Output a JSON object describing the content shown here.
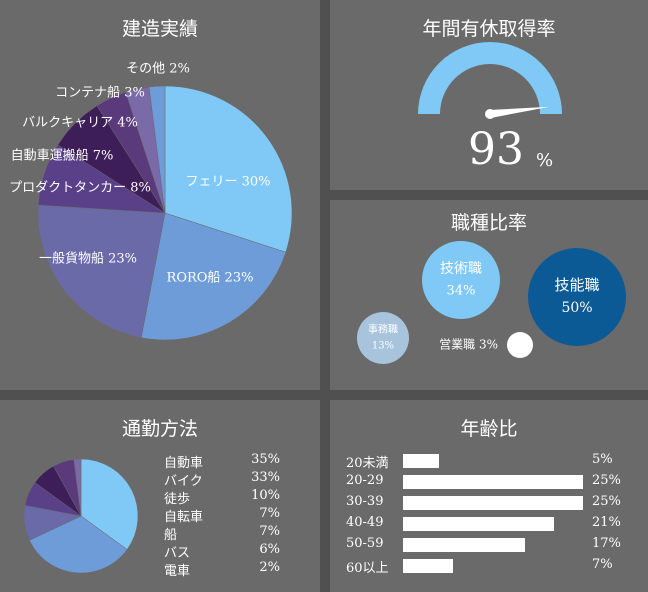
{
  "panels": {
    "construction": {
      "title": "建造実績"
    },
    "holidays": {
      "title": "年間有休取得率",
      "value": "93",
      "unit": "%"
    },
    "jobs": {
      "title": "職種比率"
    },
    "commute": {
      "title": "通勤方法"
    },
    "age": {
      "title": "年齢比"
    }
  },
  "colors": {
    "panel_bg": "#6a6a6a",
    "page_bg": "#505050",
    "light_blue": "#80c8f5",
    "mid_blue": "#6e9cd8",
    "dark_blue": "#0b5a96",
    "gray_blue": "#a8c4dc"
  },
  "chart_data": [
    {
      "type": "pie",
      "title": "建造実績",
      "slices": [
        {
          "label": "フェリー",
          "value": 30,
          "color": "#80c8f5"
        },
        {
          "label": "RORO船",
          "value": 23,
          "color": "#6e9cd8"
        },
        {
          "label": "一般貨物船",
          "value": 23,
          "color": "#6a6aa8"
        },
        {
          "label": "プロダクトタンカー",
          "value": 8,
          "color": "#5a4088"
        },
        {
          "label": "自動車運搬船",
          "value": 7,
          "color": "#3e1e58"
        },
        {
          "label": "バルクキャリア",
          "value": 4,
          "color": "#5a3a7a"
        },
        {
          "label": "コンテナ船",
          "value": 3,
          "color": "#7a6aa8"
        },
        {
          "label": "その他",
          "value": 2,
          "color": "#6e9cd8"
        }
      ]
    },
    {
      "type": "gauge",
      "title": "年間有休取得率",
      "value": 93,
      "max": 100,
      "unit": "%"
    },
    {
      "type": "bubble",
      "title": "職種比率",
      "items": [
        {
          "label": "技能職",
          "value": 50,
          "color": "#0b5a96"
        },
        {
          "label": "技術職",
          "value": 34,
          "color": "#80c8f5"
        },
        {
          "label": "事務職",
          "value": 13,
          "color": "#a8c4dc"
        },
        {
          "label": "営業職",
          "value": 3,
          "color": "#ffffff"
        }
      ]
    },
    {
      "type": "pie",
      "title": "通勤方法",
      "slices": [
        {
          "label": "自動車",
          "value": 35,
          "color": "#80c8f5"
        },
        {
          "label": "バイク",
          "value": 33,
          "color": "#6e9cd8"
        },
        {
          "label": "徒歩",
          "value": 10,
          "color": "#6a6aa8"
        },
        {
          "label": "自転車",
          "value": 7,
          "color": "#5a4088"
        },
        {
          "label": "船",
          "value": 7,
          "color": "#3e1e58"
        },
        {
          "label": "バス",
          "value": 6,
          "color": "#5a3a7a"
        },
        {
          "label": "電車",
          "value": 2,
          "color": "#7a6aa8"
        }
      ]
    },
    {
      "type": "bar",
      "orientation": "horizontal",
      "title": "年齢比",
      "categories": [
        "20未満",
        "20-29",
        "30-39",
        "40-49",
        "50-59",
        "60以上"
      ],
      "values": [
        5,
        25,
        25,
        21,
        17,
        7
      ],
      "unit": "%",
      "xlim": [
        0,
        25
      ]
    }
  ]
}
